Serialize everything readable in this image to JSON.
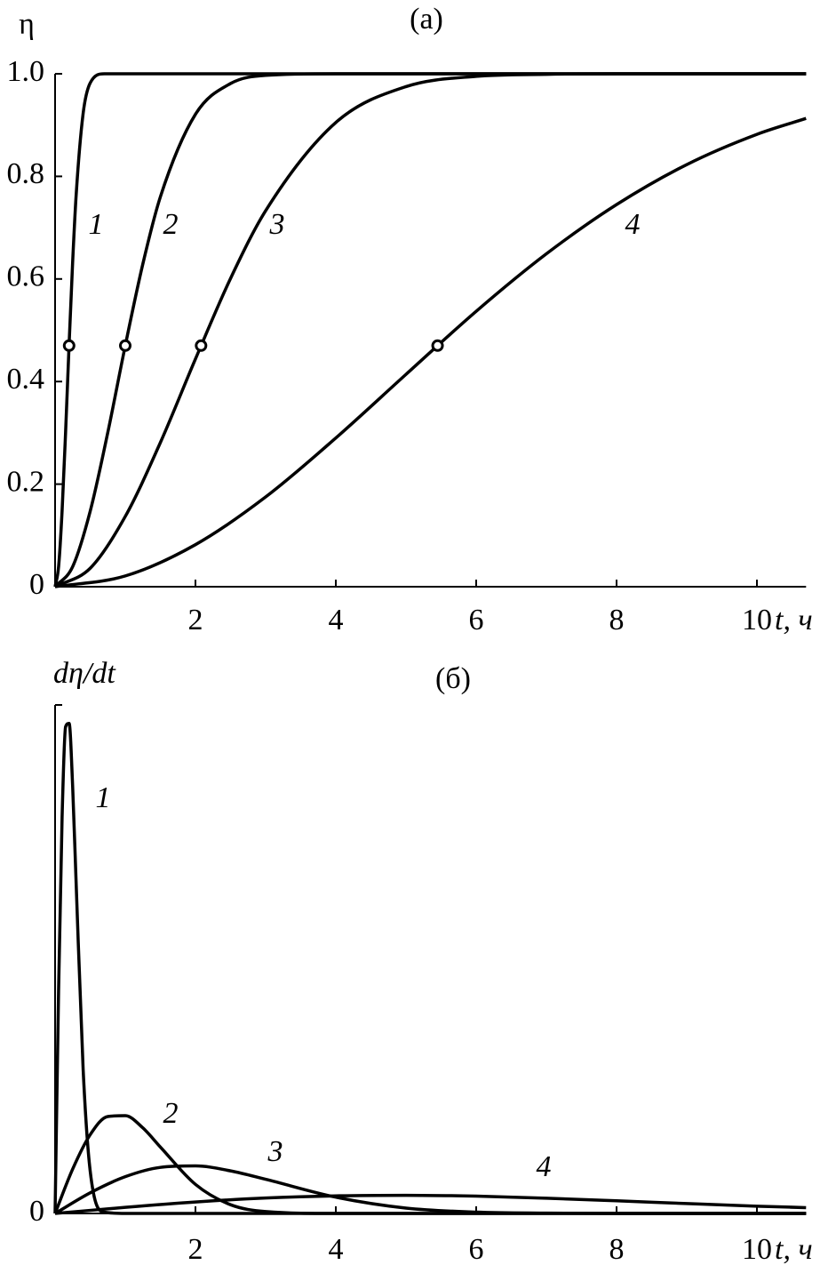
{
  "chart_data": [
    {
      "type": "line",
      "title": "(а)",
      "y_label": "η",
      "x_label": "t, ч",
      "xlim": [
        0,
        10.7
      ],
      "ylim": [
        0,
        1
      ],
      "xticks": [
        2,
        4,
        6,
        8,
        10
      ],
      "yticks": [
        0,
        0.2,
        0.4,
        0.6,
        0.8,
        {
          "value": 1,
          "label": "1.0"
        }
      ],
      "series": [
        {
          "name": "1",
          "color": "#000000",
          "x": [
            0,
            0.05,
            0.1,
            0.15,
            0.2,
            0.25,
            0.3,
            0.4,
            0.5,
            0.7,
            1,
            2,
            4,
            6,
            8,
            10.7
          ],
          "values": [
            0,
            0.039,
            0.148,
            0.302,
            0.473,
            0.632,
            0.763,
            0.923,
            0.982,
            1,
            1,
            1,
            1,
            1,
            1,
            1
          ],
          "marker": {
            "x": 0.2,
            "y": 0.47
          }
        },
        {
          "name": "2",
          "color": "#000000",
          "x": [
            0,
            0.25,
            0.5,
            0.75,
            1,
            1.25,
            1.5,
            2,
            2.5,
            3,
            4,
            6,
            8,
            10.7
          ],
          "values": [
            0,
            0.039,
            0.147,
            0.3,
            0.47,
            0.629,
            0.76,
            0.921,
            0.981,
            0.997,
            1,
            1,
            1,
            1
          ],
          "marker": {
            "x": 1,
            "y": 0.47
          }
        },
        {
          "name": "3",
          "color": "#000000",
          "x": [
            0,
            0.5,
            1,
            1.5,
            2,
            2.5,
            3,
            4,
            5,
            6,
            7,
            8,
            10.7
          ],
          "values": [
            0,
            0.036,
            0.137,
            0.281,
            0.444,
            0.601,
            0.733,
            0.905,
            0.975,
            0.995,
            0.999,
            1,
            1
          ],
          "marker": {
            "x": 2.08,
            "y": 0.47
          }
        },
        {
          "name": "4",
          "color": "#000000",
          "x": [
            0,
            1,
            2,
            3,
            4,
            5,
            6,
            7,
            8,
            9,
            10,
            10.7
          ],
          "values": [
            0,
            0.021,
            0.082,
            0.175,
            0.29,
            0.414,
            0.537,
            0.649,
            0.745,
            0.823,
            0.882,
            0.913
          ],
          "marker": {
            "x": 5.45,
            "y": 0.47
          }
        }
      ]
    },
    {
      "type": "line",
      "title": "(б)",
      "y_label": "dη/dt",
      "x_label": "t, ч",
      "xlim": [
        0,
        10.7
      ],
      "ylim": [
        0,
        3.5
      ],
      "xticks": [
        2,
        4,
        6,
        8,
        10
      ],
      "yticks": [
        0
      ],
      "series": [
        {
          "name": "1",
          "color": "#000000",
          "x": [
            0,
            0.05,
            0.1,
            0.15,
            0.2,
            0.25,
            0.3,
            0.4,
            0.5,
            0.7,
            1,
            2,
            4,
            6,
            8,
            10.7
          ],
          "values": [
            0,
            1.538,
            2.727,
            3.35,
            3.373,
            2.943,
            2.275,
            0.989,
            0.293,
            0.009,
            0,
            0,
            0,
            0,
            0,
            0
          ]
        },
        {
          "name": "2",
          "color": "#000000",
          "x": [
            0,
            0.25,
            0.5,
            0.75,
            1,
            1.25,
            1.5,
            2,
            2.5,
            3,
            4,
            6,
            8,
            10.7
          ],
          "values": [
            0,
            0.305,
            0.542,
            0.667,
            0.673,
            0.589,
            0.457,
            0.2,
            0.06,
            0.013,
            0,
            0,
            0,
            0
          ]
        },
        {
          "name": "3",
          "color": "#000000",
          "x": [
            0,
            0.5,
            1,
            1.5,
            2,
            2.5,
            3,
            4,
            5,
            6,
            7,
            8,
            10.7
          ],
          "values": [
            0,
            0.142,
            0.253,
            0.317,
            0.327,
            0.293,
            0.235,
            0.112,
            0.037,
            0.009,
            0.002,
            0,
            0
          ]
        },
        {
          "name": "4",
          "color": "#000000",
          "x": [
            0,
            1,
            2,
            3,
            4,
            5,
            6,
            7,
            8,
            9,
            10,
            10.7
          ],
          "values": [
            0,
            0.042,
            0.079,
            0.106,
            0.121,
            0.125,
            0.119,
            0.105,
            0.087,
            0.068,
            0.05,
            0.04
          ]
        }
      ]
    }
  ]
}
